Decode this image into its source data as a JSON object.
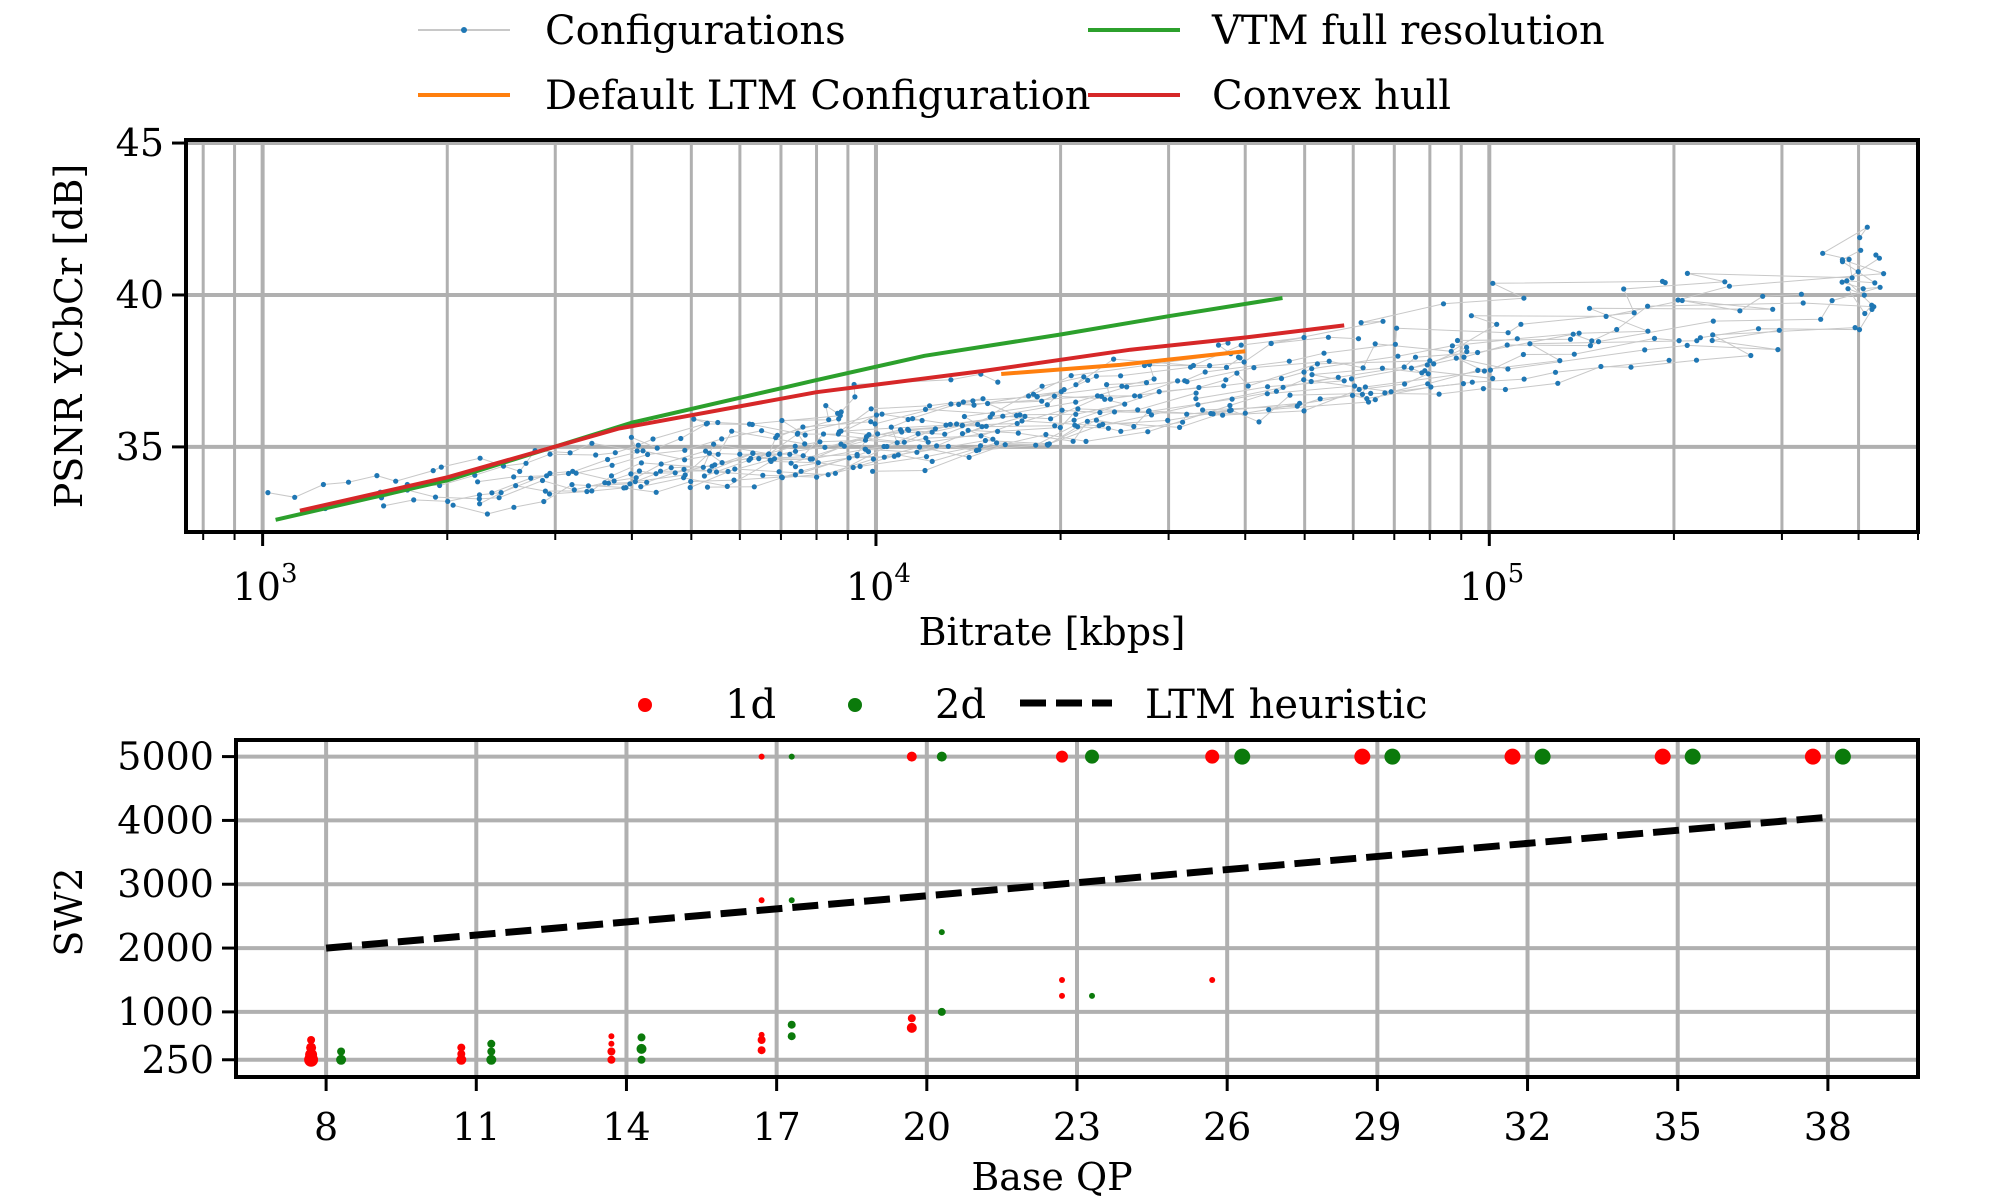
{
  "chart_data": [
    {
      "type": "scatter",
      "xscale": "log",
      "xlabel": "Bitrate [kbps]",
      "ylabel": "PSNR YCbCr [dB]",
      "xlim": [
        750,
        500000
      ],
      "ylim": [
        32.2,
        45.1
      ],
      "x_ticks": [
        1000,
        10000,
        100000
      ],
      "x_tick_labels": [
        {
          "base": "10",
          "exp": "3"
        },
        {
          "base": "10",
          "exp": "4"
        },
        {
          "base": "10",
          "exp": "5"
        }
      ],
      "y_ticks": [
        35,
        40,
        45
      ],
      "y_tick_labels": [
        "35",
        "40",
        "45"
      ],
      "grid": true,
      "legend": {
        "position": "top",
        "entries": [
          "Configurations",
          "VTM full resolution",
          "Default LTM Configuration",
          "Convex hull"
        ]
      },
      "series": [
        {
          "name": "VTM full resolution",
          "kind": "line",
          "color": "#2ca02c",
          "points": [
            [
              1050,
              32.6
            ],
            [
              2000,
              33.9
            ],
            [
              4000,
              35.8
            ],
            [
              8000,
              37.2
            ],
            [
              12000,
              38.0
            ],
            [
              20000,
              38.7
            ],
            [
              30000,
              39.3
            ],
            [
              46000,
              39.9
            ]
          ]
        },
        {
          "name": "Convex hull",
          "kind": "line",
          "color": "#d62728",
          "points": [
            [
              1150,
              32.9
            ],
            [
              2000,
              34.0
            ],
            [
              3800,
              35.6
            ],
            [
              8000,
              36.8
            ],
            [
              15000,
              37.5
            ],
            [
              26000,
              38.2
            ],
            [
              40000,
              38.6
            ],
            [
              58000,
              39.0
            ]
          ]
        },
        {
          "name": "Default LTM Configuration",
          "kind": "line",
          "color": "#ff7f0e",
          "points": [
            [
              16000,
              37.4
            ],
            [
              25000,
              37.7
            ],
            [
              40000,
              38.15
            ]
          ]
        },
        {
          "name": "Configurations",
          "kind": "scatter",
          "color": "#1f77b4",
          "generator": {
            "n": 22,
            "m": 24,
            "x_start": [
              1200,
              10000
            ],
            "x_span": [
              1.0,
              2.1
            ],
            "psnr_at_start": [
              33.0,
              34.6
            ],
            "slope_per_decade": [
              2.4,
              4.0
            ],
            "max_psnr": 44.6,
            "max_x": 440000
          }
        }
      ]
    },
    {
      "type": "scatter",
      "xlabel": "Base QP",
      "ylabel": "SW2",
      "xlim": [
        6.2,
        39.8
      ],
      "ylim": [
        -20,
        5260
      ],
      "x_ticks": [
        8,
        11,
        14,
        17,
        20,
        23,
        26,
        29,
        32,
        35,
        38
      ],
      "x_tick_labels": [
        "8",
        "11",
        "14",
        "17",
        "20",
        "23",
        "26",
        "29",
        "32",
        "35",
        "38"
      ],
      "y_ticks": [
        250,
        1000,
        2000,
        3000,
        4000,
        5000
      ],
      "y_tick_labels": [
        "250",
        "1000",
        "2000",
        "3000",
        "4000",
        "5000"
      ],
      "grid": true,
      "legend": {
        "position": "top",
        "entries": [
          "1d",
          "2d",
          "LTM heuristic"
        ]
      },
      "series": [
        {
          "name": "1d",
          "color": "#ff0000",
          "points": [
            [
              8,
              250,
              7
            ],
            [
              8,
              330,
              6
            ],
            [
              8,
              440,
              5
            ],
            [
              8,
              560,
              4
            ],
            [
              11,
              250,
              5
            ],
            [
              11,
              340,
              4
            ],
            [
              11,
              440,
              4
            ],
            [
              14,
              250,
              4
            ],
            [
              14,
              380,
              4
            ],
            [
              14,
              500,
              3
            ],
            [
              14,
              620,
              3
            ],
            [
              17,
              400,
              4
            ],
            [
              17,
              560,
              4
            ],
            [
              17,
              640,
              3
            ],
            [
              17,
              2750,
              3
            ],
            [
              17,
              5000,
              3
            ],
            [
              20,
              750,
              5
            ],
            [
              20,
              900,
              4
            ],
            [
              20,
              5000,
              5
            ],
            [
              23,
              1250,
              3
            ],
            [
              23,
              1500,
              3
            ],
            [
              23,
              5000,
              6
            ],
            [
              26,
              1500,
              3
            ],
            [
              26,
              5000,
              7
            ],
            [
              29,
              5000,
              8
            ],
            [
              32,
              5000,
              8
            ],
            [
              35,
              5000,
              8
            ],
            [
              38,
              5000,
              8
            ]
          ]
        },
        {
          "name": "2d",
          "color": "#0b7a0b",
          "points": [
            [
              8,
              250,
              5
            ],
            [
              8,
              380,
              4
            ],
            [
              11,
              250,
              5
            ],
            [
              11,
              380,
              4
            ],
            [
              11,
              500,
              4
            ],
            [
              14,
              250,
              4
            ],
            [
              14,
              420,
              5
            ],
            [
              14,
              600,
              4
            ],
            [
              17,
              620,
              4
            ],
            [
              17,
              800,
              4
            ],
            [
              17,
              2750,
              3
            ],
            [
              17,
              5000,
              3
            ],
            [
              20,
              1000,
              4
            ],
            [
              20,
              2250,
              3
            ],
            [
              20,
              5000,
              5
            ],
            [
              23,
              1250,
              3
            ],
            [
              23,
              5000,
              7
            ],
            [
              26,
              5000,
              8
            ],
            [
              29,
              5000,
              8
            ],
            [
              32,
              5000,
              8
            ],
            [
              35,
              5000,
              8
            ],
            [
              38,
              5000,
              8
            ]
          ]
        },
        {
          "name": "LTM heuristic",
          "kind": "dashed-line",
          "color": "#000000",
          "points": [
            [
              8,
              2000
            ],
            [
              38,
              4050
            ]
          ]
        }
      ]
    }
  ]
}
